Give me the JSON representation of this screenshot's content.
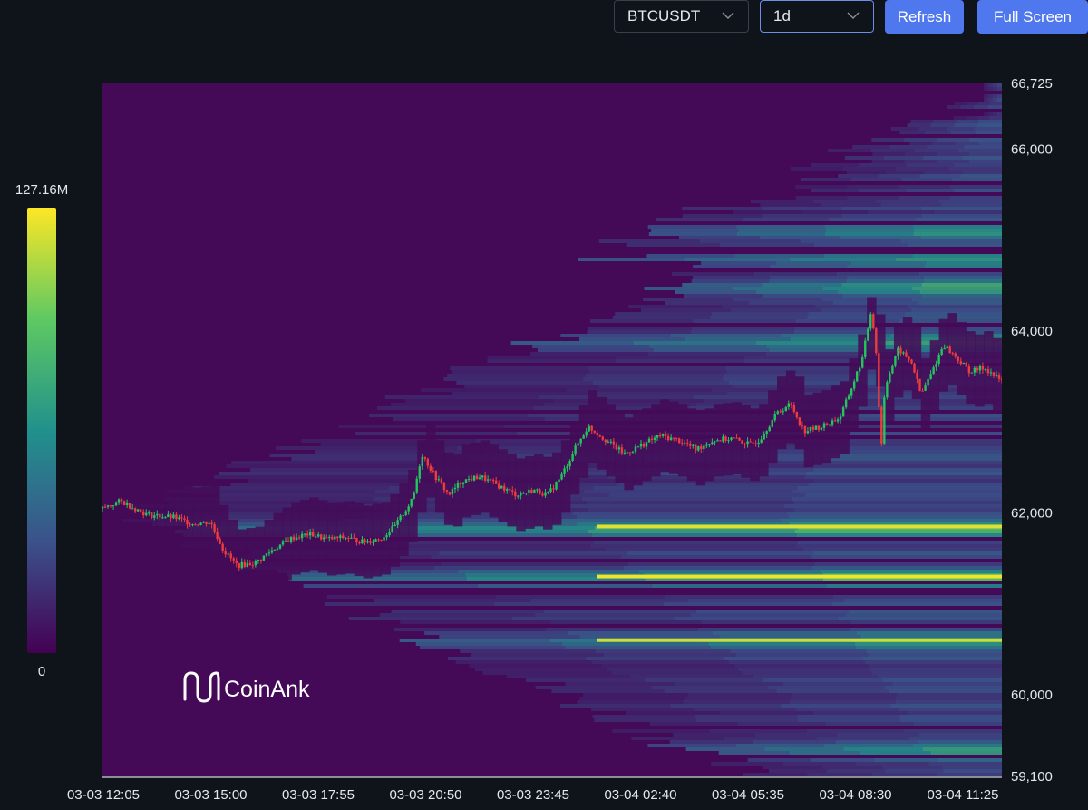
{
  "controls": {
    "symbol": "BTCUSDT",
    "interval": "1d",
    "refresh_label": "Refresh",
    "fullscreen_label": "Full Screen"
  },
  "watermark": "CoinAnk",
  "chart_data": {
    "type": "heatmap",
    "title": "",
    "xlabel": "",
    "ylabel": "",
    "x_ticks": [
      "03-03 12:05",
      "03-03 15:00",
      "03-03 17:55",
      "03-03 20:50",
      "03-03 23:45",
      "03-04 02:40",
      "03-04 05:35",
      "03-04 08:30",
      "03-04 11:25"
    ],
    "y_ticks": [
      "66,725",
      "66,000",
      "64,000",
      "62,000",
      "60,000",
      "59,100"
    ],
    "y_tick_values": [
      66725,
      66000,
      64000,
      62000,
      60000,
      59100
    ],
    "ylim": [
      59100,
      66725
    ],
    "colorbar": {
      "max_label": "127.16M",
      "min_label": "0",
      "max": 127.16,
      "min": 0,
      "unit": "M"
    },
    "colors": {
      "background": "#440a57",
      "up": "#22c55e",
      "down": "#ef3b3b",
      "scale": [
        "#440154",
        "#3b528b",
        "#21918c",
        "#5ec962",
        "#fde725"
      ]
    },
    "price_path": [
      [
        0,
        62050
      ],
      [
        0.02,
        62130
      ],
      [
        0.05,
        61980
      ],
      [
        0.08,
        61950
      ],
      [
        0.1,
        61880
      ],
      [
        0.12,
        61900
      ],
      [
        0.135,
        61580
      ],
      [
        0.15,
        61420
      ],
      [
        0.17,
        61450
      ],
      [
        0.19,
        61600
      ],
      [
        0.21,
        61720
      ],
      [
        0.23,
        61770
      ],
      [
        0.25,
        61710
      ],
      [
        0.27,
        61730
      ],
      [
        0.29,
        61680
      ],
      [
        0.31,
        61720
      ],
      [
        0.325,
        61850
      ],
      [
        0.345,
        62150
      ],
      [
        0.355,
        62650
      ],
      [
        0.37,
        62400
      ],
      [
        0.385,
        62200
      ],
      [
        0.4,
        62350
      ],
      [
        0.42,
        62400
      ],
      [
        0.44,
        62300
      ],
      [
        0.46,
        62200
      ],
      [
        0.48,
        62250
      ],
      [
        0.495,
        62200
      ],
      [
        0.51,
        62400
      ],
      [
        0.525,
        62700
      ],
      [
        0.54,
        62950
      ],
      [
        0.56,
        62800
      ],
      [
        0.58,
        62650
      ],
      [
        0.6,
        62750
      ],
      [
        0.62,
        62850
      ],
      [
        0.64,
        62800
      ],
      [
        0.66,
        62700
      ],
      [
        0.68,
        62800
      ],
      [
        0.7,
        62820
      ],
      [
        0.72,
        62750
      ],
      [
        0.73,
        62800
      ],
      [
        0.75,
        63100
      ],
      [
        0.765,
        63200
      ],
      [
        0.78,
        62900
      ],
      [
        0.8,
        62950
      ],
      [
        0.82,
        63050
      ],
      [
        0.83,
        63300
      ],
      [
        0.845,
        63700
      ],
      [
        0.855,
        64250
      ],
      [
        0.862,
        63600
      ],
      [
        0.865,
        62550
      ],
      [
        0.87,
        63400
      ],
      [
        0.885,
        63800
      ],
      [
        0.9,
        63650
      ],
      [
        0.91,
        63300
      ],
      [
        0.92,
        63500
      ],
      [
        0.935,
        63850
      ],
      [
        0.95,
        63700
      ],
      [
        0.965,
        63550
      ],
      [
        0.98,
        63600
      ],
      [
        1.0,
        63450
      ]
    ],
    "liquidity_bands": [
      {
        "price": 61300,
        "intensity": 1.0
      },
      {
        "price": 61850,
        "intensity": 0.85
      },
      {
        "price": 60600,
        "intensity": 0.7
      },
      {
        "price": 64500,
        "intensity": 0.7
      },
      {
        "price": 63900,
        "intensity": 0.65
      },
      {
        "price": 65100,
        "intensity": 0.6
      },
      {
        "price": 64800,
        "intensity": 0.55
      },
      {
        "price": 59400,
        "intensity": 0.6
      }
    ]
  }
}
